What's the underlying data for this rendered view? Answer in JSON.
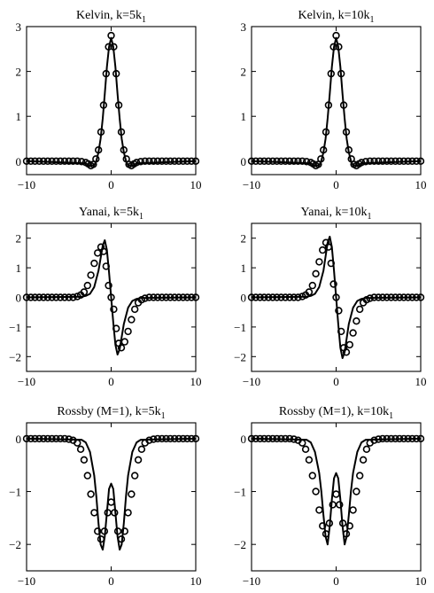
{
  "chart_data": [
    {
      "type": "line",
      "title": "Kelvin, k=5k",
      "title_sub": "1",
      "xlim": [
        -10,
        10
      ],
      "ylim": [
        -0.3,
        3
      ],
      "xticks": [
        -10,
        0,
        10
      ],
      "yticks": [
        0,
        1,
        2,
        3
      ],
      "grid": false,
      "series": [
        {
          "style": "solid-line",
          "x": [
            -10,
            -3,
            -2.5,
            -2,
            -1.75,
            -1.5,
            -1.25,
            -1,
            -0.75,
            -0.5,
            -0.25,
            0,
            0.25,
            0.5,
            0.75,
            1,
            1.25,
            1.5,
            1.75,
            2,
            2.5,
            3,
            10
          ],
          "y": [
            0,
            -0.05,
            -0.1,
            -0.09,
            0.01,
            0.2,
            0.5,
            0.95,
            1.5,
            2.1,
            2.55,
            2.75,
            2.55,
            2.1,
            1.5,
            0.95,
            0.5,
            0.2,
            0.01,
            -0.09,
            -0.1,
            -0.05,
            0
          ]
        },
        {
          "style": "circle-markers",
          "x": [
            -10,
            -9.5,
            -9,
            -8.5,
            -8,
            -7.5,
            -7,
            -6.5,
            -6,
            -5.5,
            -5,
            -4.5,
            -4,
            -3.5,
            -3,
            -2.7,
            -2.4,
            -2.1,
            -1.8,
            -1.5,
            -1.2,
            -0.9,
            -0.6,
            -0.3,
            0,
            0.3,
            0.6,
            0.9,
            1.2,
            1.5,
            1.8,
            2.1,
            2.4,
            2.7,
            3,
            3.5,
            4,
            4.5,
            5,
            5.5,
            6,
            6.5,
            7,
            7.5,
            8,
            8.5,
            9,
            9.5,
            10
          ],
          "y": [
            0,
            0,
            0,
            0,
            0,
            0,
            0,
            0,
            0,
            0,
            0,
            0,
            0,
            -0.01,
            -0.03,
            -0.06,
            -0.1,
            -0.07,
            0.05,
            0.25,
            0.65,
            1.25,
            1.95,
            2.55,
            2.8,
            2.55,
            1.95,
            1.25,
            0.65,
            0.25,
            0.05,
            -0.07,
            -0.1,
            -0.06,
            -0.03,
            -0.01,
            0,
            0,
            0,
            0,
            0,
            0,
            0,
            0,
            0,
            0,
            0,
            0,
            0
          ]
        }
      ]
    },
    {
      "type": "line",
      "title": "Kelvin, k=10k",
      "title_sub": "1",
      "xlim": [
        -10,
        10
      ],
      "ylim": [
        -0.3,
        3
      ],
      "xticks": [
        -10,
        0,
        10
      ],
      "yticks": [
        0,
        1,
        2,
        3
      ],
      "grid": false,
      "series": [
        {
          "style": "solid-line",
          "x": [
            -10,
            -3,
            -2.5,
            -2,
            -1.75,
            -1.5,
            -1.25,
            -1,
            -0.75,
            -0.5,
            -0.25,
            0,
            0.25,
            0.5,
            0.75,
            1,
            1.25,
            1.5,
            1.75,
            2,
            2.5,
            3,
            10
          ],
          "y": [
            0,
            -0.05,
            -0.1,
            -0.09,
            0.01,
            0.2,
            0.5,
            0.95,
            1.5,
            2.1,
            2.55,
            2.75,
            2.55,
            2.1,
            1.5,
            0.95,
            0.5,
            0.2,
            0.01,
            -0.09,
            -0.1,
            -0.05,
            0
          ]
        },
        {
          "style": "circle-markers",
          "x": [
            -10,
            -9.5,
            -9,
            -8.5,
            -8,
            -7.5,
            -7,
            -6.5,
            -6,
            -5.5,
            -5,
            -4.5,
            -4,
            -3.5,
            -3,
            -2.7,
            -2.4,
            -2.1,
            -1.8,
            -1.5,
            -1.2,
            -0.9,
            -0.6,
            -0.3,
            0,
            0.3,
            0.6,
            0.9,
            1.2,
            1.5,
            1.8,
            2.1,
            2.4,
            2.7,
            3,
            3.5,
            4,
            4.5,
            5,
            5.5,
            6,
            6.5,
            7,
            7.5,
            8,
            8.5,
            9,
            9.5,
            10
          ],
          "y": [
            0,
            0,
            0,
            0,
            0,
            0,
            0,
            0,
            0,
            0,
            0,
            0,
            0,
            -0.01,
            -0.03,
            -0.06,
            -0.1,
            -0.07,
            0.05,
            0.25,
            0.65,
            1.25,
            1.95,
            2.55,
            2.8,
            2.55,
            1.95,
            1.25,
            0.65,
            0.25,
            0.05,
            -0.07,
            -0.1,
            -0.06,
            -0.03,
            -0.01,
            0,
            0,
            0,
            0,
            0,
            0,
            0,
            0,
            0,
            0,
            0,
            0,
            0
          ]
        }
      ]
    },
    {
      "type": "line",
      "title": "Yanai, k=5k",
      "title_sub": "1",
      "xlim": [
        -10,
        10
      ],
      "ylim": [
        -2.5,
        2.5
      ],
      "xticks": [
        -10,
        0,
        10
      ],
      "yticks": [
        -2,
        -1,
        0,
        1,
        2
      ],
      "grid": false,
      "series": [
        {
          "style": "solid-line",
          "x": [
            -10,
            -3.5,
            -3,
            -2.5,
            -2,
            -1.5,
            -1,
            -0.75,
            -0.5,
            -0.25,
            0,
            0.25,
            0.5,
            0.75,
            1,
            1.5,
            2,
            2.5,
            3,
            3.5,
            10
          ],
          "y": [
            0,
            0.02,
            0.05,
            0.12,
            0.35,
            0.9,
            1.75,
            1.93,
            1.6,
            0.85,
            0,
            -0.85,
            -1.6,
            -1.93,
            -1.75,
            -0.9,
            -0.35,
            -0.12,
            -0.05,
            -0.02,
            0
          ]
        },
        {
          "style": "circle-markers",
          "x": [
            -10,
            -9.5,
            -9,
            -8.5,
            -8,
            -7.5,
            -7,
            -6.5,
            -6,
            -5.5,
            -5,
            -4.5,
            -4,
            -3.6,
            -3.2,
            -2.8,
            -2.4,
            -2,
            -1.6,
            -1.2,
            -0.9,
            -0.6,
            -0.3,
            0,
            0.3,
            0.6,
            0.9,
            1.2,
            1.6,
            2,
            2.4,
            2.8,
            3.2,
            3.6,
            4,
            4.5,
            5,
            5.5,
            6,
            6.5,
            7,
            7.5,
            8,
            8.5,
            9,
            9.5,
            10
          ],
          "y": [
            0,
            0,
            0,
            0,
            0,
            0,
            0,
            0,
            0,
            0,
            0,
            0,
            0.03,
            0.08,
            0.18,
            0.4,
            0.75,
            1.15,
            1.5,
            1.7,
            1.55,
            1.05,
            0.4,
            0,
            -0.4,
            -1.05,
            -1.55,
            -1.7,
            -1.5,
            -1.15,
            -0.75,
            -0.4,
            -0.18,
            -0.08,
            -0.03,
            0,
            0,
            0,
            0,
            0,
            0,
            0,
            0,
            0,
            0,
            0,
            0
          ]
        }
      ]
    },
    {
      "type": "line",
      "title": "Yanai, k=10k",
      "title_sub": "1",
      "xlim": [
        -10,
        10
      ],
      "ylim": [
        -2.5,
        2.5
      ],
      "xticks": [
        -10,
        0,
        10
      ],
      "yticks": [
        -2,
        -1,
        0,
        1,
        2
      ],
      "grid": false,
      "series": [
        {
          "style": "solid-line",
          "x": [
            -10,
            -3.5,
            -3,
            -2.5,
            -2,
            -1.5,
            -1,
            -0.75,
            -0.5,
            -0.25,
            0,
            0.25,
            0.5,
            0.75,
            1,
            1.5,
            2,
            2.5,
            3,
            3.5,
            10
          ],
          "y": [
            0,
            0.02,
            0.05,
            0.12,
            0.35,
            0.9,
            1.85,
            2.05,
            1.7,
            0.9,
            0,
            -0.9,
            -1.7,
            -2.05,
            -1.85,
            -0.9,
            -0.35,
            -0.12,
            -0.05,
            -0.02,
            0
          ]
        },
        {
          "style": "circle-markers",
          "x": [
            -10,
            -9.5,
            -9,
            -8.5,
            -8,
            -7.5,
            -7,
            -6.5,
            -6,
            -5.5,
            -5,
            -4.5,
            -4,
            -3.6,
            -3.2,
            -2.8,
            -2.4,
            -2,
            -1.6,
            -1.2,
            -0.9,
            -0.6,
            -0.3,
            0,
            0.3,
            0.6,
            0.9,
            1.2,
            1.6,
            2,
            2.4,
            2.8,
            3.2,
            3.6,
            4,
            4.5,
            5,
            5.5,
            6,
            6.5,
            7,
            7.5,
            8,
            8.5,
            9,
            9.5,
            10
          ],
          "y": [
            0,
            0,
            0,
            0,
            0,
            0,
            0,
            0,
            0,
            0,
            0,
            0,
            0.03,
            0.08,
            0.18,
            0.4,
            0.8,
            1.2,
            1.6,
            1.85,
            1.7,
            1.15,
            0.45,
            0,
            -0.45,
            -1.15,
            -1.7,
            -1.85,
            -1.6,
            -1.2,
            -0.8,
            -0.4,
            -0.18,
            -0.08,
            -0.03,
            0,
            0,
            0,
            0,
            0,
            0,
            0,
            0,
            0,
            0,
            0,
            0
          ]
        }
      ]
    },
    {
      "type": "line",
      "title": "Rossby (M=1), k=5k",
      "title_sub": "1",
      "xlim": [
        -10,
        10
      ],
      "ylim": [
        -2.5,
        0.3
      ],
      "xticks": [
        -10,
        0,
        10
      ],
      "yticks": [
        -2,
        -1,
        0
      ],
      "grid": false,
      "series": [
        {
          "style": "solid-line",
          "x": [
            -10,
            -3.5,
            -3,
            -2.5,
            -2,
            -1.75,
            -1.5,
            -1.25,
            -1,
            -0.75,
            -0.5,
            -0.25,
            0,
            0.25,
            0.5,
            0.75,
            1,
            1.25,
            1.5,
            1.75,
            2,
            2.5,
            3,
            3.5,
            10
          ],
          "y": [
            0,
            -0.02,
            -0.07,
            -0.25,
            -0.7,
            -1.1,
            -1.6,
            -2.0,
            -2.1,
            -1.85,
            -1.4,
            -0.95,
            -0.85,
            -0.95,
            -1.4,
            -1.85,
            -2.1,
            -2.0,
            -1.6,
            -1.1,
            -0.7,
            -0.25,
            -0.07,
            -0.02,
            0
          ]
        },
        {
          "style": "circle-markers",
          "x": [
            -10,
            -9.5,
            -9,
            -8.5,
            -8,
            -7.5,
            -7,
            -6.5,
            -6,
            -5.5,
            -5,
            -4.5,
            -4,
            -3.6,
            -3.2,
            -2.8,
            -2.4,
            -2,
            -1.6,
            -1.2,
            -0.8,
            -0.4,
            0,
            0.4,
            0.8,
            1.2,
            1.6,
            2,
            2.4,
            2.8,
            3.2,
            3.6,
            4,
            4.5,
            5,
            5.5,
            6,
            6.5,
            7,
            7.5,
            8,
            8.5,
            9,
            9.5,
            10
          ],
          "y": [
            0,
            0,
            0,
            0,
            0,
            0,
            0,
            0,
            0,
            0,
            -0.01,
            -0.03,
            -0.08,
            -0.2,
            -0.4,
            -0.7,
            -1.05,
            -1.4,
            -1.75,
            -1.9,
            -1.75,
            -1.4,
            -1.2,
            -1.4,
            -1.75,
            -1.9,
            -1.75,
            -1.4,
            -1.05,
            -0.7,
            -0.4,
            -0.2,
            -0.08,
            -0.03,
            -0.01,
            0,
            0,
            0,
            0,
            0,
            0,
            0,
            0,
            0,
            0
          ]
        }
      ]
    },
    {
      "type": "line",
      "title": "Rossby (M=1), k=10k",
      "title_sub": "1",
      "xlim": [
        -10,
        10
      ],
      "ylim": [
        -2.5,
        0.3
      ],
      "xticks": [
        -10,
        0,
        10
      ],
      "yticks": [
        -2,
        -1,
        0
      ],
      "grid": false,
      "series": [
        {
          "style": "solid-line",
          "x": [
            -10,
            -3.5,
            -3,
            -2.5,
            -2,
            -1.75,
            -1.5,
            -1.25,
            -1,
            -0.75,
            -0.5,
            -0.25,
            0,
            0.25,
            0.5,
            0.75,
            1,
            1.25,
            1.5,
            1.75,
            2,
            2.5,
            3,
            3.5,
            10
          ],
          "y": [
            0,
            -0.02,
            -0.07,
            -0.25,
            -0.65,
            -1.0,
            -1.45,
            -1.85,
            -2.0,
            -1.65,
            -1.15,
            -0.75,
            -0.65,
            -0.75,
            -1.15,
            -1.65,
            -2.0,
            -1.85,
            -1.45,
            -1.0,
            -0.65,
            -0.25,
            -0.07,
            -0.02,
            0
          ]
        },
        {
          "style": "circle-markers",
          "x": [
            -10,
            -9.5,
            -9,
            -8.5,
            -8,
            -7.5,
            -7,
            -6.5,
            -6,
            -5.5,
            -5,
            -4.5,
            -4,
            -3.6,
            -3.2,
            -2.8,
            -2.4,
            -2,
            -1.6,
            -1.2,
            -0.8,
            -0.4,
            0,
            0.4,
            0.8,
            1.2,
            1.6,
            2,
            2.4,
            2.8,
            3.2,
            3.6,
            4,
            4.5,
            5,
            5.5,
            6,
            6.5,
            7,
            7.5,
            8,
            8.5,
            9,
            9.5,
            10
          ],
          "y": [
            0,
            0,
            0,
            0,
            0,
            0,
            0,
            0,
            0,
            0,
            -0.01,
            -0.03,
            -0.08,
            -0.2,
            -0.4,
            -0.7,
            -1.0,
            -1.35,
            -1.65,
            -1.8,
            -1.6,
            -1.25,
            -1.05,
            -1.25,
            -1.6,
            -1.8,
            -1.65,
            -1.35,
            -1.0,
            -0.7,
            -0.4,
            -0.2,
            -0.08,
            -0.03,
            -0.01,
            0,
            0,
            0,
            0,
            0,
            0,
            0,
            0,
            0,
            0
          ]
        }
      ]
    }
  ]
}
